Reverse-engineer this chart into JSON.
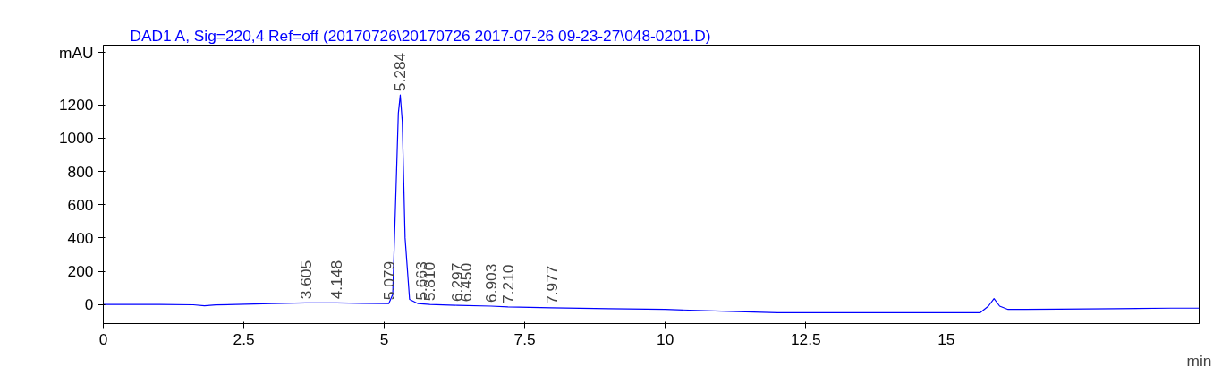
{
  "chart_data": {
    "type": "line",
    "title": "DAD1 A, Sig=220,4 Ref=off (20170726\\20170726 2017-07-26 09-23-27\\048-0201.D)",
    "xlabel": "min",
    "ylabel": "mAU",
    "series": [
      {
        "color": "#0000ff",
        "x": [
          0,
          1,
          1.6,
          1.8,
          2.0,
          3,
          3.6,
          4.148,
          4.6,
          5.079,
          5.15,
          5.2,
          5.25,
          5.284,
          5.32,
          5.37,
          5.45,
          5.6,
          5.81,
          6.3,
          6.9,
          7.2,
          7.977,
          9,
          10,
          11,
          12,
          13,
          14,
          15,
          15.6,
          15.75,
          15.85,
          15.95,
          16.1,
          16.4,
          17,
          18,
          19,
          19.5
        ],
        "values": [
          0,
          0,
          -2,
          -8,
          -3,
          5,
          10,
          10,
          7,
          5,
          60,
          600,
          1150,
          1260,
          1100,
          400,
          30,
          5,
          0,
          -5,
          -10,
          -15,
          -20,
          -25,
          -30,
          -40,
          -50,
          -50,
          -50,
          -50,
          -50,
          -10,
          35,
          -10,
          -30,
          -30,
          -28,
          -25,
          -22,
          -22
        ]
      }
    ],
    "xlim": [
      0,
      19.5
    ],
    "xticks": [
      0,
      2.5,
      5,
      7.5,
      10,
      12.5,
      15
    ],
    "ylim": [
      -115,
      1560
    ],
    "yticks": [
      0,
      200,
      400,
      600,
      800,
      1000,
      1200
    ],
    "grid": false,
    "marker": "none",
    "line_style": "solid",
    "annotations": [
      {
        "text": "3.605",
        "x": 3.605,
        "y": 10
      },
      {
        "text": "4.148",
        "x": 4.148,
        "y": 10
      },
      {
        "text": "5.079",
        "x": 5.079,
        "y": 5
      },
      {
        "text": "5.284",
        "x": 5.284,
        "y": 1260
      },
      {
        "text": "5.663",
        "x": 5.663,
        "y": 3
      },
      {
        "text": "5.810",
        "x": 5.81,
        "y": 0
      },
      {
        "text": "6.297",
        "x": 6.297,
        "y": -5
      },
      {
        "text": "6.450",
        "x": 6.45,
        "y": -6
      },
      {
        "text": "6.903",
        "x": 6.903,
        "y": -10
      },
      {
        "text": "7.210",
        "x": 7.21,
        "y": -15
      },
      {
        "text": "7.977",
        "x": 7.977,
        "y": -20
      }
    ]
  }
}
